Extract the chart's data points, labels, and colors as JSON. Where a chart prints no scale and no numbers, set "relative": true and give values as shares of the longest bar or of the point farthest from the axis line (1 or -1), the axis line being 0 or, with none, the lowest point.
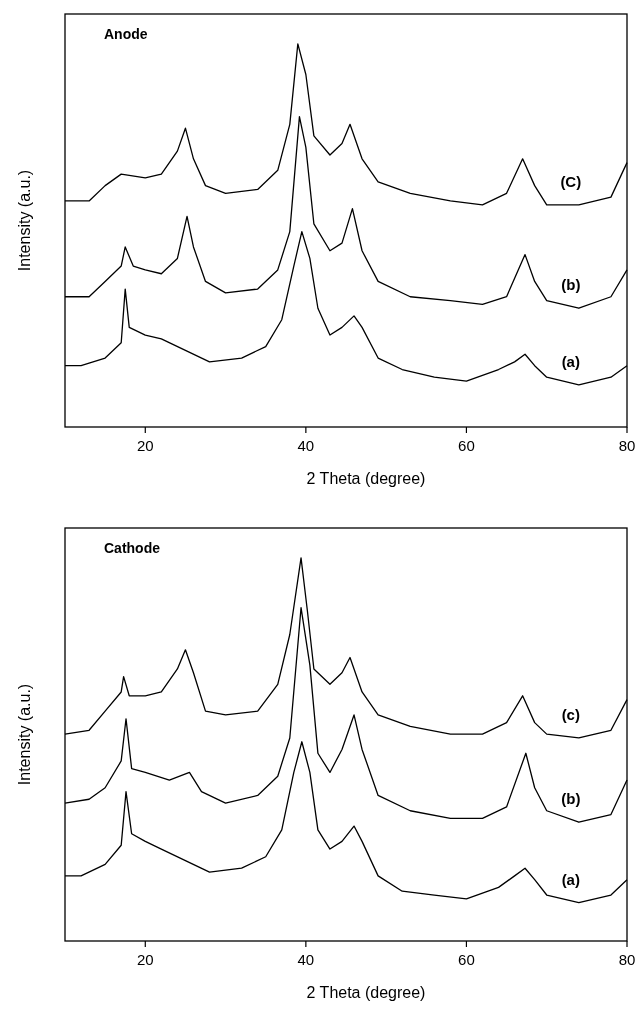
{
  "chart_data": [
    {
      "type": "line",
      "title": "Anode",
      "xlabel": "2 Theta (degree)",
      "ylabel": "Intensity (a.u.)",
      "relative": true,
      "xlim": [
        10,
        80
      ],
      "xticks": [
        20,
        40,
        60,
        80
      ],
      "grid": false,
      "marker": "none",
      "line_style": "solid",
      "tick_labels": "x",
      "series": [
        {
          "name": "(a)",
          "color": "#000000",
          "x": [
            10,
            12,
            15,
            17,
            17.5,
            18,
            20,
            22,
            25,
            28,
            32,
            35,
            37,
            38.5,
            39.5,
            40.5,
            41.5,
            43,
            44.5,
            46,
            47,
            49,
            52,
            56,
            60,
            64,
            66,
            67.3,
            68.5,
            70,
            74,
            78,
            80
          ],
          "values": [
            0.16,
            0.16,
            0.18,
            0.22,
            0.36,
            0.26,
            0.24,
            0.23,
            0.2,
            0.17,
            0.18,
            0.21,
            0.28,
            0.42,
            0.51,
            0.44,
            0.31,
            0.24,
            0.26,
            0.29,
            0.26,
            0.18,
            0.15,
            0.13,
            0.12,
            0.15,
            0.17,
            0.19,
            0.16,
            0.13,
            0.11,
            0.13,
            0.16
          ]
        },
        {
          "name": "(b)",
          "color": "#000000",
          "x": [
            10,
            13,
            15,
            17,
            17.5,
            18.5,
            20,
            22,
            24,
            25.2,
            26,
            27.5,
            30,
            34,
            36.5,
            38,
            39.2,
            40,
            41,
            43,
            44.5,
            45.8,
            47,
            49,
            53,
            58,
            62,
            65,
            67.3,
            68.5,
            70,
            74,
            78,
            80
          ],
          "values": [
            0.34,
            0.34,
            0.38,
            0.42,
            0.47,
            0.42,
            0.41,
            0.4,
            0.44,
            0.55,
            0.47,
            0.38,
            0.35,
            0.36,
            0.41,
            0.51,
            0.81,
            0.73,
            0.53,
            0.46,
            0.48,
            0.57,
            0.46,
            0.38,
            0.34,
            0.33,
            0.32,
            0.34,
            0.45,
            0.38,
            0.33,
            0.31,
            0.34,
            0.41
          ]
        },
        {
          "name": "(C)",
          "color": "#000000",
          "x": [
            10,
            13,
            15,
            17,
            20,
            22,
            24,
            25,
            26,
            27.5,
            30,
            34,
            36.5,
            38,
            39,
            40,
            41,
            43,
            44.5,
            45.5,
            47,
            49,
            53,
            58,
            62,
            65,
            67,
            68.5,
            70,
            74,
            78,
            80
          ],
          "values": [
            0.59,
            0.59,
            0.63,
            0.66,
            0.65,
            0.66,
            0.72,
            0.78,
            0.7,
            0.63,
            0.61,
            0.62,
            0.67,
            0.79,
            1,
            0.92,
            0.76,
            0.71,
            0.74,
            0.79,
            0.7,
            0.64,
            0.61,
            0.59,
            0.58,
            0.61,
            0.7,
            0.63,
            0.58,
            0.58,
            0.6,
            0.69
          ]
        }
      ]
    },
    {
      "type": "line",
      "title": "Cathode",
      "xlabel": "2 Theta (degree)",
      "ylabel": "Intensity (a.u.)",
      "relative": true,
      "xlim": [
        10,
        80
      ],
      "xticks": [
        20,
        40,
        60,
        80
      ],
      "grid": false,
      "marker": "none",
      "line_style": "solid",
      "tick_labels": "x",
      "series": [
        {
          "name": "(a)",
          "color": "#000000",
          "x": [
            10,
            12,
            15,
            17,
            17.6,
            18.3,
            20,
            22,
            25,
            28,
            32,
            35,
            37,
            38.5,
            39.5,
            40.5,
            41.5,
            43,
            44.5,
            46,
            47,
            49,
            52,
            56,
            60,
            64,
            66,
            67.3,
            68.5,
            70,
            74,
            78,
            80
          ],
          "values": [
            0.17,
            0.17,
            0.2,
            0.25,
            0.39,
            0.28,
            0.26,
            0.24,
            0.21,
            0.18,
            0.19,
            0.22,
            0.29,
            0.44,
            0.52,
            0.44,
            0.29,
            0.24,
            0.26,
            0.3,
            0.26,
            0.17,
            0.13,
            0.12,
            0.11,
            0.14,
            0.17,
            0.19,
            0.16,
            0.12,
            0.1,
            0.12,
            0.16
          ]
        },
        {
          "name": "(b)",
          "color": "#000000",
          "x": [
            10,
            13,
            15,
            17,
            17.6,
            18.3,
            20,
            23,
            25.5,
            27,
            30,
            34,
            36.5,
            38,
            39.4,
            40.5,
            41.5,
            43,
            44.5,
            46,
            47,
            49,
            53,
            58,
            62,
            65,
            67.4,
            68.5,
            70,
            74,
            78,
            80
          ],
          "values": [
            0.36,
            0.37,
            0.4,
            0.47,
            0.58,
            0.45,
            0.44,
            0.42,
            0.44,
            0.39,
            0.36,
            0.38,
            0.43,
            0.53,
            0.87,
            0.72,
            0.49,
            0.44,
            0.5,
            0.59,
            0.5,
            0.38,
            0.34,
            0.32,
            0.32,
            0.35,
            0.49,
            0.4,
            0.34,
            0.31,
            0.33,
            0.42
          ]
        },
        {
          "name": "(c)",
          "color": "#000000",
          "x": [
            10,
            13,
            15,
            17,
            17.3,
            18,
            20,
            22,
            24,
            25,
            26,
            27.5,
            30,
            34,
            36.5,
            38,
            39.4,
            40.2,
            41,
            43,
            44.5,
            45.5,
            47,
            49,
            53,
            58,
            62,
            65,
            67,
            68.5,
            70,
            74,
            78,
            80
          ],
          "values": [
            0.54,
            0.55,
            0.6,
            0.65,
            0.69,
            0.64,
            0.64,
            0.65,
            0.71,
            0.76,
            0.7,
            0.6,
            0.59,
            0.6,
            0.67,
            0.8,
            1,
            0.86,
            0.71,
            0.67,
            0.7,
            0.74,
            0.65,
            0.59,
            0.56,
            0.54,
            0.54,
            0.57,
            0.64,
            0.57,
            0.54,
            0.53,
            0.55,
            0.63
          ]
        }
      ]
    }
  ]
}
